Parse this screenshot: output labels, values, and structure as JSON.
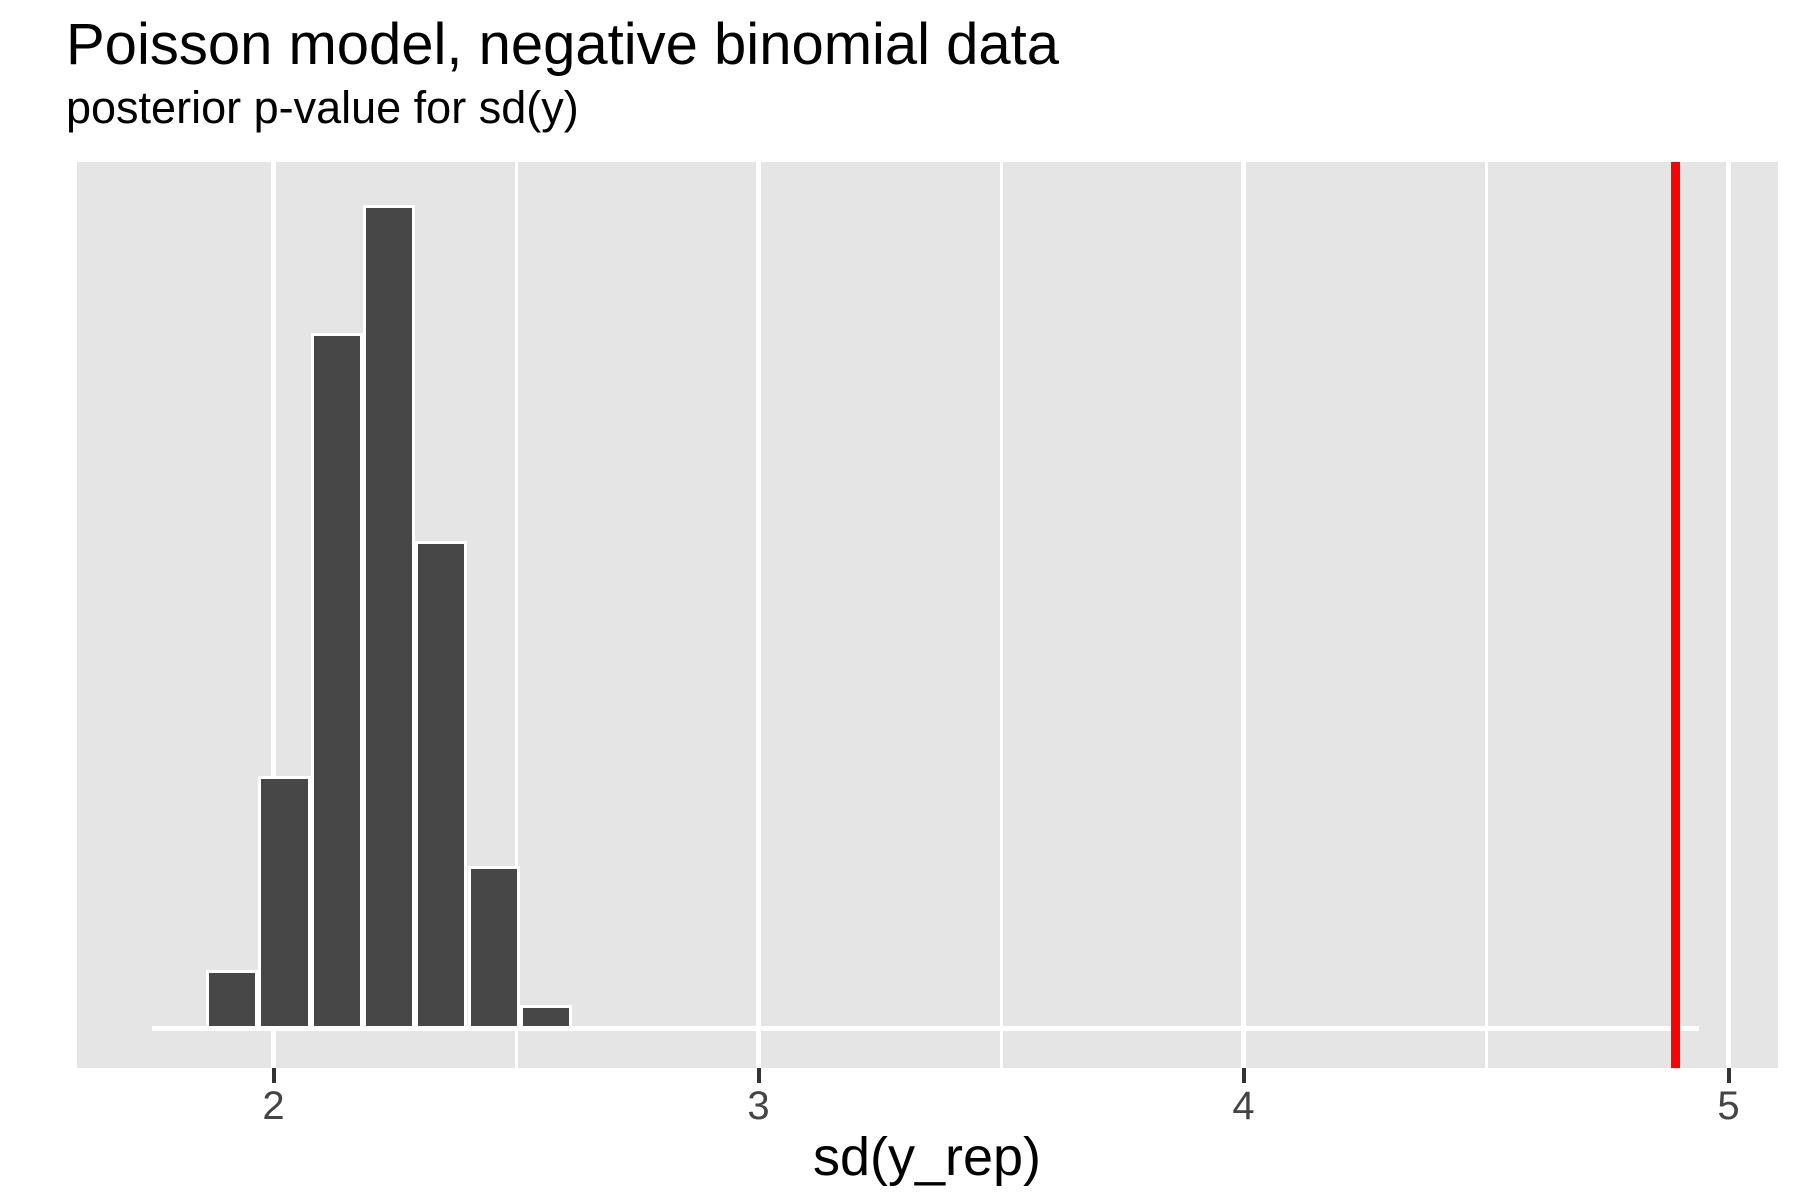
{
  "header": {
    "title": "Poisson model, negative binomial data",
    "subtitle": "posterior p-value for sd(y)"
  },
  "axis": {
    "x_label": "sd(y_rep)",
    "x_tick_labels": [
      "2",
      "3",
      "4",
      "5"
    ]
  },
  "colors": {
    "panel_bg": "#E5E5E5",
    "bar_fill": "#474747",
    "bar_outline": "#FFFFFF",
    "gridline_major": "#FFFFFF",
    "gridline_minor": "#FFFFFF",
    "baseline": "#FFFFFF",
    "observed_line": "#FF0000",
    "tick_mark": "#333333",
    "tick_label": "#444444",
    "title_text": "#000000"
  },
  "chart_data": {
    "type": "bar",
    "subtype": "histogram",
    "title": "Poisson model, negative binomial data",
    "subtitle": "posterior p-value for sd(y)",
    "xlabel": "sd(y_rep)",
    "ylabel": "",
    "xlim": [
      1.6,
      5.1
    ],
    "x_tick_values": [
      2,
      3,
      4,
      5
    ],
    "x_minor_gridline_values": [
      2.5,
      3.5,
      4.5
    ],
    "y_axis_labels_shown": false,
    "grid": "vertical white major and minor gridlines on gray panel; horizontal white line at y=0",
    "legend_position": "none",
    "bin_edges": [
      1.861,
      1.969,
      2.077,
      2.184,
      2.292,
      2.4,
      2.508,
      2.616
    ],
    "relative_counts": [
      0.065,
      0.302,
      0.843,
      1.0,
      0.589,
      0.192,
      0.022
    ],
    "counts_note": "y axis unlabeled; bar heights are relative to tallest bin (bin 2.184-2.292)",
    "zero_count_baseline_extent": [
      1.75,
      4.94
    ],
    "observed_stat_line_x": 4.89
  }
}
